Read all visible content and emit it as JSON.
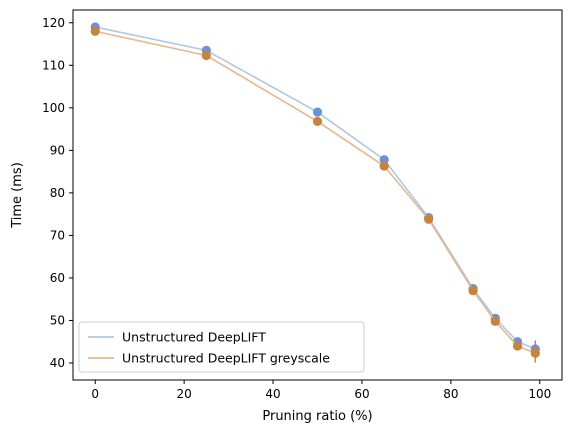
{
  "chart_data": {
    "type": "line",
    "title": "",
    "xlabel": "Pruning ratio (%)",
    "ylabel": "Time (ms)",
    "xlim": [
      -5,
      105
    ],
    "ylim": [
      36,
      123
    ],
    "xticks": [
      0,
      20,
      40,
      60,
      80,
      100
    ],
    "yticks": [
      40,
      50,
      60,
      70,
      80,
      90,
      100,
      110,
      120
    ],
    "grid": false,
    "legend_position": "lower-left",
    "x": [
      0,
      25,
      50,
      65,
      75,
      85,
      90,
      95,
      99
    ],
    "series": [
      {
        "name": "Unstructured DeepLIFT",
        "values": [
          119.0,
          113.5,
          99.0,
          87.8,
          74.2,
          57.5,
          50.5,
          45.0,
          43.3
        ],
        "errors": [
          0,
          0,
          0,
          0,
          0,
          0,
          0,
          0,
          2.0
        ],
        "line_color": "#aec7e8",
        "marker_color": "#6a92dc"
      },
      {
        "name": "Unstructured DeepLIFT greyscale",
        "values": [
          118.0,
          112.3,
          96.8,
          86.3,
          73.8,
          57.0,
          49.8,
          44.0,
          42.3
        ],
        "errors": [
          0,
          0,
          0,
          0,
          0,
          0,
          0,
          0,
          2.2
        ],
        "line_color": "#e8b88a",
        "marker_color": "#c98236"
      }
    ]
  }
}
